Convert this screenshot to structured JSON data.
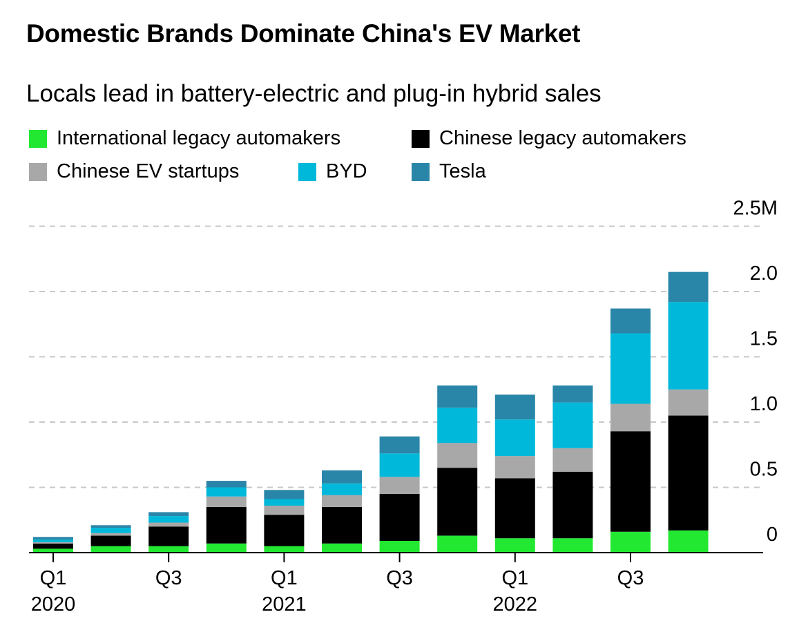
{
  "chart_data": {
    "type": "bar",
    "stacked": true,
    "title": "Domestic Brands Dominate China's EV Market",
    "subtitle": "Locals lead in battery-electric and plug-in hybrid sales",
    "categories": [
      "Q1 2020",
      "Q2 2020",
      "Q3 2020",
      "Q4 2020",
      "Q1 2021",
      "Q2 2021",
      "Q3 2021",
      "Q4 2021",
      "Q1 2022",
      "Q2 2022",
      "Q3 2022",
      "Q4 2022"
    ],
    "x_tick_labels": [
      {
        "index": 0,
        "line1": "Q1",
        "line2": "2020"
      },
      {
        "index": 2,
        "line1": "Q3",
        "line2": ""
      },
      {
        "index": 4,
        "line1": "Q1",
        "line2": "2021"
      },
      {
        "index": 6,
        "line1": "Q3",
        "line2": ""
      },
      {
        "index": 8,
        "line1": "Q1",
        "line2": "2022"
      },
      {
        "index": 10,
        "line1": "Q3",
        "line2": ""
      }
    ],
    "y_ticks": [
      {
        "value": 0,
        "label": "0"
      },
      {
        "value": 0.5,
        "label": "0.5"
      },
      {
        "value": 1.0,
        "label": "1.0"
      },
      {
        "value": 1.5,
        "label": "1.5"
      },
      {
        "value": 2.0,
        "label": "2.0"
      },
      {
        "value": 2.5,
        "label": "2.5M"
      }
    ],
    "ylim": [
      0,
      2.5
    ],
    "unit": "M",
    "grid": true,
    "legend_position": "top-left",
    "series": [
      {
        "name": "International legacy automakers",
        "color": "#22e831",
        "values": [
          0.03,
          0.05,
          0.05,
          0.07,
          0.05,
          0.07,
          0.09,
          0.13,
          0.11,
          0.11,
          0.16,
          0.17
        ]
      },
      {
        "name": "Chinese legacy automakers",
        "color": "#000000",
        "values": [
          0.04,
          0.08,
          0.15,
          0.28,
          0.24,
          0.28,
          0.36,
          0.52,
          0.46,
          0.51,
          0.77,
          0.88
        ]
      },
      {
        "name": "Chinese EV startups",
        "color": "#a8a8a8",
        "values": [
          0.01,
          0.02,
          0.03,
          0.08,
          0.07,
          0.09,
          0.13,
          0.19,
          0.17,
          0.18,
          0.21,
          0.2
        ]
      },
      {
        "name": "BYD",
        "color": "#00b8d9",
        "values": [
          0.02,
          0.04,
          0.05,
          0.07,
          0.05,
          0.09,
          0.18,
          0.27,
          0.28,
          0.35,
          0.54,
          0.67
        ]
      },
      {
        "name": "Tesla",
        "color": "#2a86a8",
        "values": [
          0.02,
          0.02,
          0.03,
          0.05,
          0.07,
          0.1,
          0.13,
          0.17,
          0.19,
          0.13,
          0.19,
          0.23
        ]
      }
    ]
  }
}
